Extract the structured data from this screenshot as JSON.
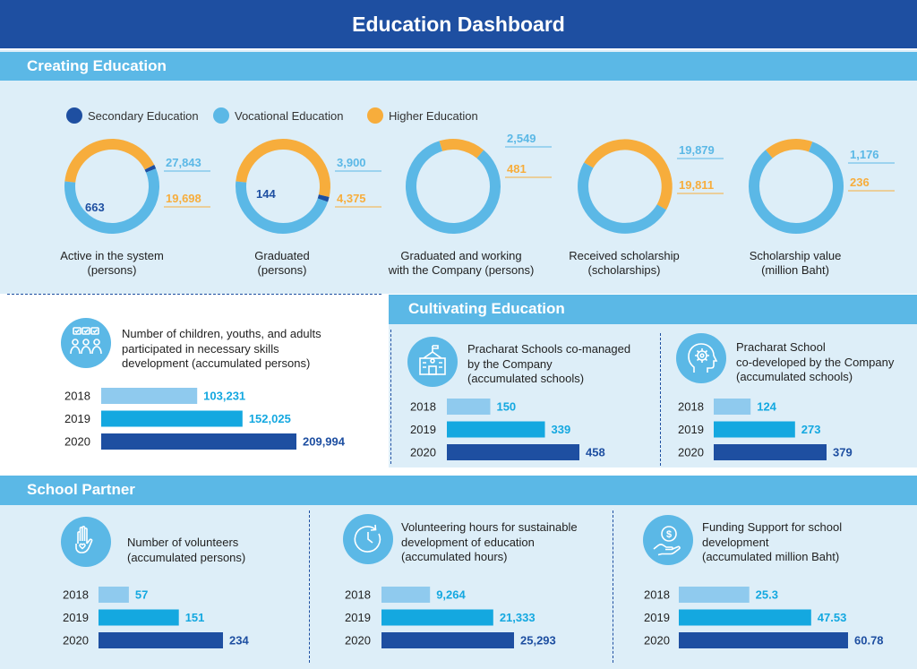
{
  "title": "Education Dashboard",
  "colors": {
    "dark": "#1e4fa1",
    "light": "#5bb8e6",
    "orange": "#f7ad3c",
    "bar2018": "#8fcaee",
    "bar2019": "#14a8e0",
    "bar2020": "#1e4fa1"
  },
  "creating": {
    "heading": "Creating Education",
    "legend": [
      {
        "label": "Secondary Education",
        "color": "#1e4fa1"
      },
      {
        "label": "Vocational Education",
        "color": "#5bb8e6"
      },
      {
        "label": "Higher Education",
        "color": "#f7ad3c"
      }
    ]
  },
  "cultivating": {
    "heading": "Cultivating Education"
  },
  "partner": {
    "heading": "School Partner"
  },
  "icons": {
    "skills": "skills-group-icon",
    "school": "school-building-icon",
    "brain": "head-gear-icon",
    "volunteer": "hand-heart-icon",
    "clock": "clock-icon",
    "funding": "hand-coin-icon"
  },
  "chart_data": [
    {
      "type": "pie",
      "label_lines": [
        "Active in the system",
        "(persons)"
      ],
      "categories": [
        "Secondary Education",
        "Vocational Education",
        "Higher Education"
      ],
      "values": [
        663,
        27843,
        19698
      ],
      "value_labels": [
        "663",
        "27,843",
        "19,698"
      ]
    },
    {
      "type": "pie",
      "label_lines": [
        "Graduated",
        "(persons)"
      ],
      "categories": [
        "Secondary Education",
        "Vocational Education",
        "Higher Education"
      ],
      "values": [
        144,
        3900,
        4375
      ],
      "value_labels": [
        "144",
        "3,900",
        "4,375"
      ]
    },
    {
      "type": "pie",
      "label_lines": [
        "Graduated and working",
        "with the Company (persons)"
      ],
      "categories": [
        "Vocational Education",
        "Higher Education"
      ],
      "values": [
        2549,
        481
      ],
      "value_labels": [
        "2,549",
        "481"
      ]
    },
    {
      "type": "pie",
      "label_lines": [
        "Received scholarship",
        "(scholarships)"
      ],
      "categories": [
        "Vocational Education",
        "Higher Education"
      ],
      "values": [
        19879,
        19811
      ],
      "value_labels": [
        "19,879",
        "19,811"
      ]
    },
    {
      "type": "pie",
      "label_lines": [
        "Scholarship value",
        "(million Baht)"
      ],
      "categories": [
        "Vocational Education",
        "Higher Education"
      ],
      "values": [
        1176,
        236
      ],
      "value_labels": [
        "1,176",
        "236"
      ]
    },
    {
      "type": "bar",
      "title_lines": [
        "Number of children, youths, and adults",
        "participated in necessary skills",
        "development (accumulated persons)"
      ],
      "categories": [
        "2018",
        "2019",
        "2020"
      ],
      "values": [
        103231,
        152025,
        209994
      ],
      "value_labels": [
        "103,231",
        "152,025",
        "209,994"
      ]
    },
    {
      "type": "bar",
      "title_lines": [
        "Pracharat Schools co-managed",
        "by the Company",
        "(accumulated schools)"
      ],
      "categories": [
        "2018",
        "2019",
        "2020"
      ],
      "values": [
        150,
        339,
        458
      ],
      "value_labels": [
        "150",
        "339",
        "458"
      ]
    },
    {
      "type": "bar",
      "title_lines": [
        "Pracharat School",
        "co-developed by the Company",
        "(accumulated schools)"
      ],
      "categories": [
        "2018",
        "2019",
        "2020"
      ],
      "values": [
        124,
        273,
        379
      ],
      "value_labels": [
        "124",
        "273",
        "379"
      ]
    },
    {
      "type": "bar",
      "title_lines": [
        "Number of volunteers",
        "(accumulated persons)"
      ],
      "categories": [
        "2018",
        "2019",
        "2020"
      ],
      "values": [
        57,
        151,
        234
      ],
      "value_labels": [
        "57",
        "151",
        "234"
      ]
    },
    {
      "type": "bar",
      "title_lines": [
        "Volunteering hours for sustainable",
        "development of education",
        "(accumulated hours)"
      ],
      "categories": [
        "2018",
        "2019",
        "2020"
      ],
      "values": [
        9264,
        21333,
        25293
      ],
      "value_labels": [
        "9,264",
        "21,333",
        "25,293"
      ]
    },
    {
      "type": "bar",
      "title_lines": [
        "Funding Support for school",
        "development",
        "(accumulated million Baht)"
      ],
      "categories": [
        "2018",
        "2019",
        "2020"
      ],
      "values": [
        25.3,
        47.53,
        60.78
      ],
      "value_labels": [
        "25.3",
        "47.53",
        "60.78"
      ]
    }
  ]
}
